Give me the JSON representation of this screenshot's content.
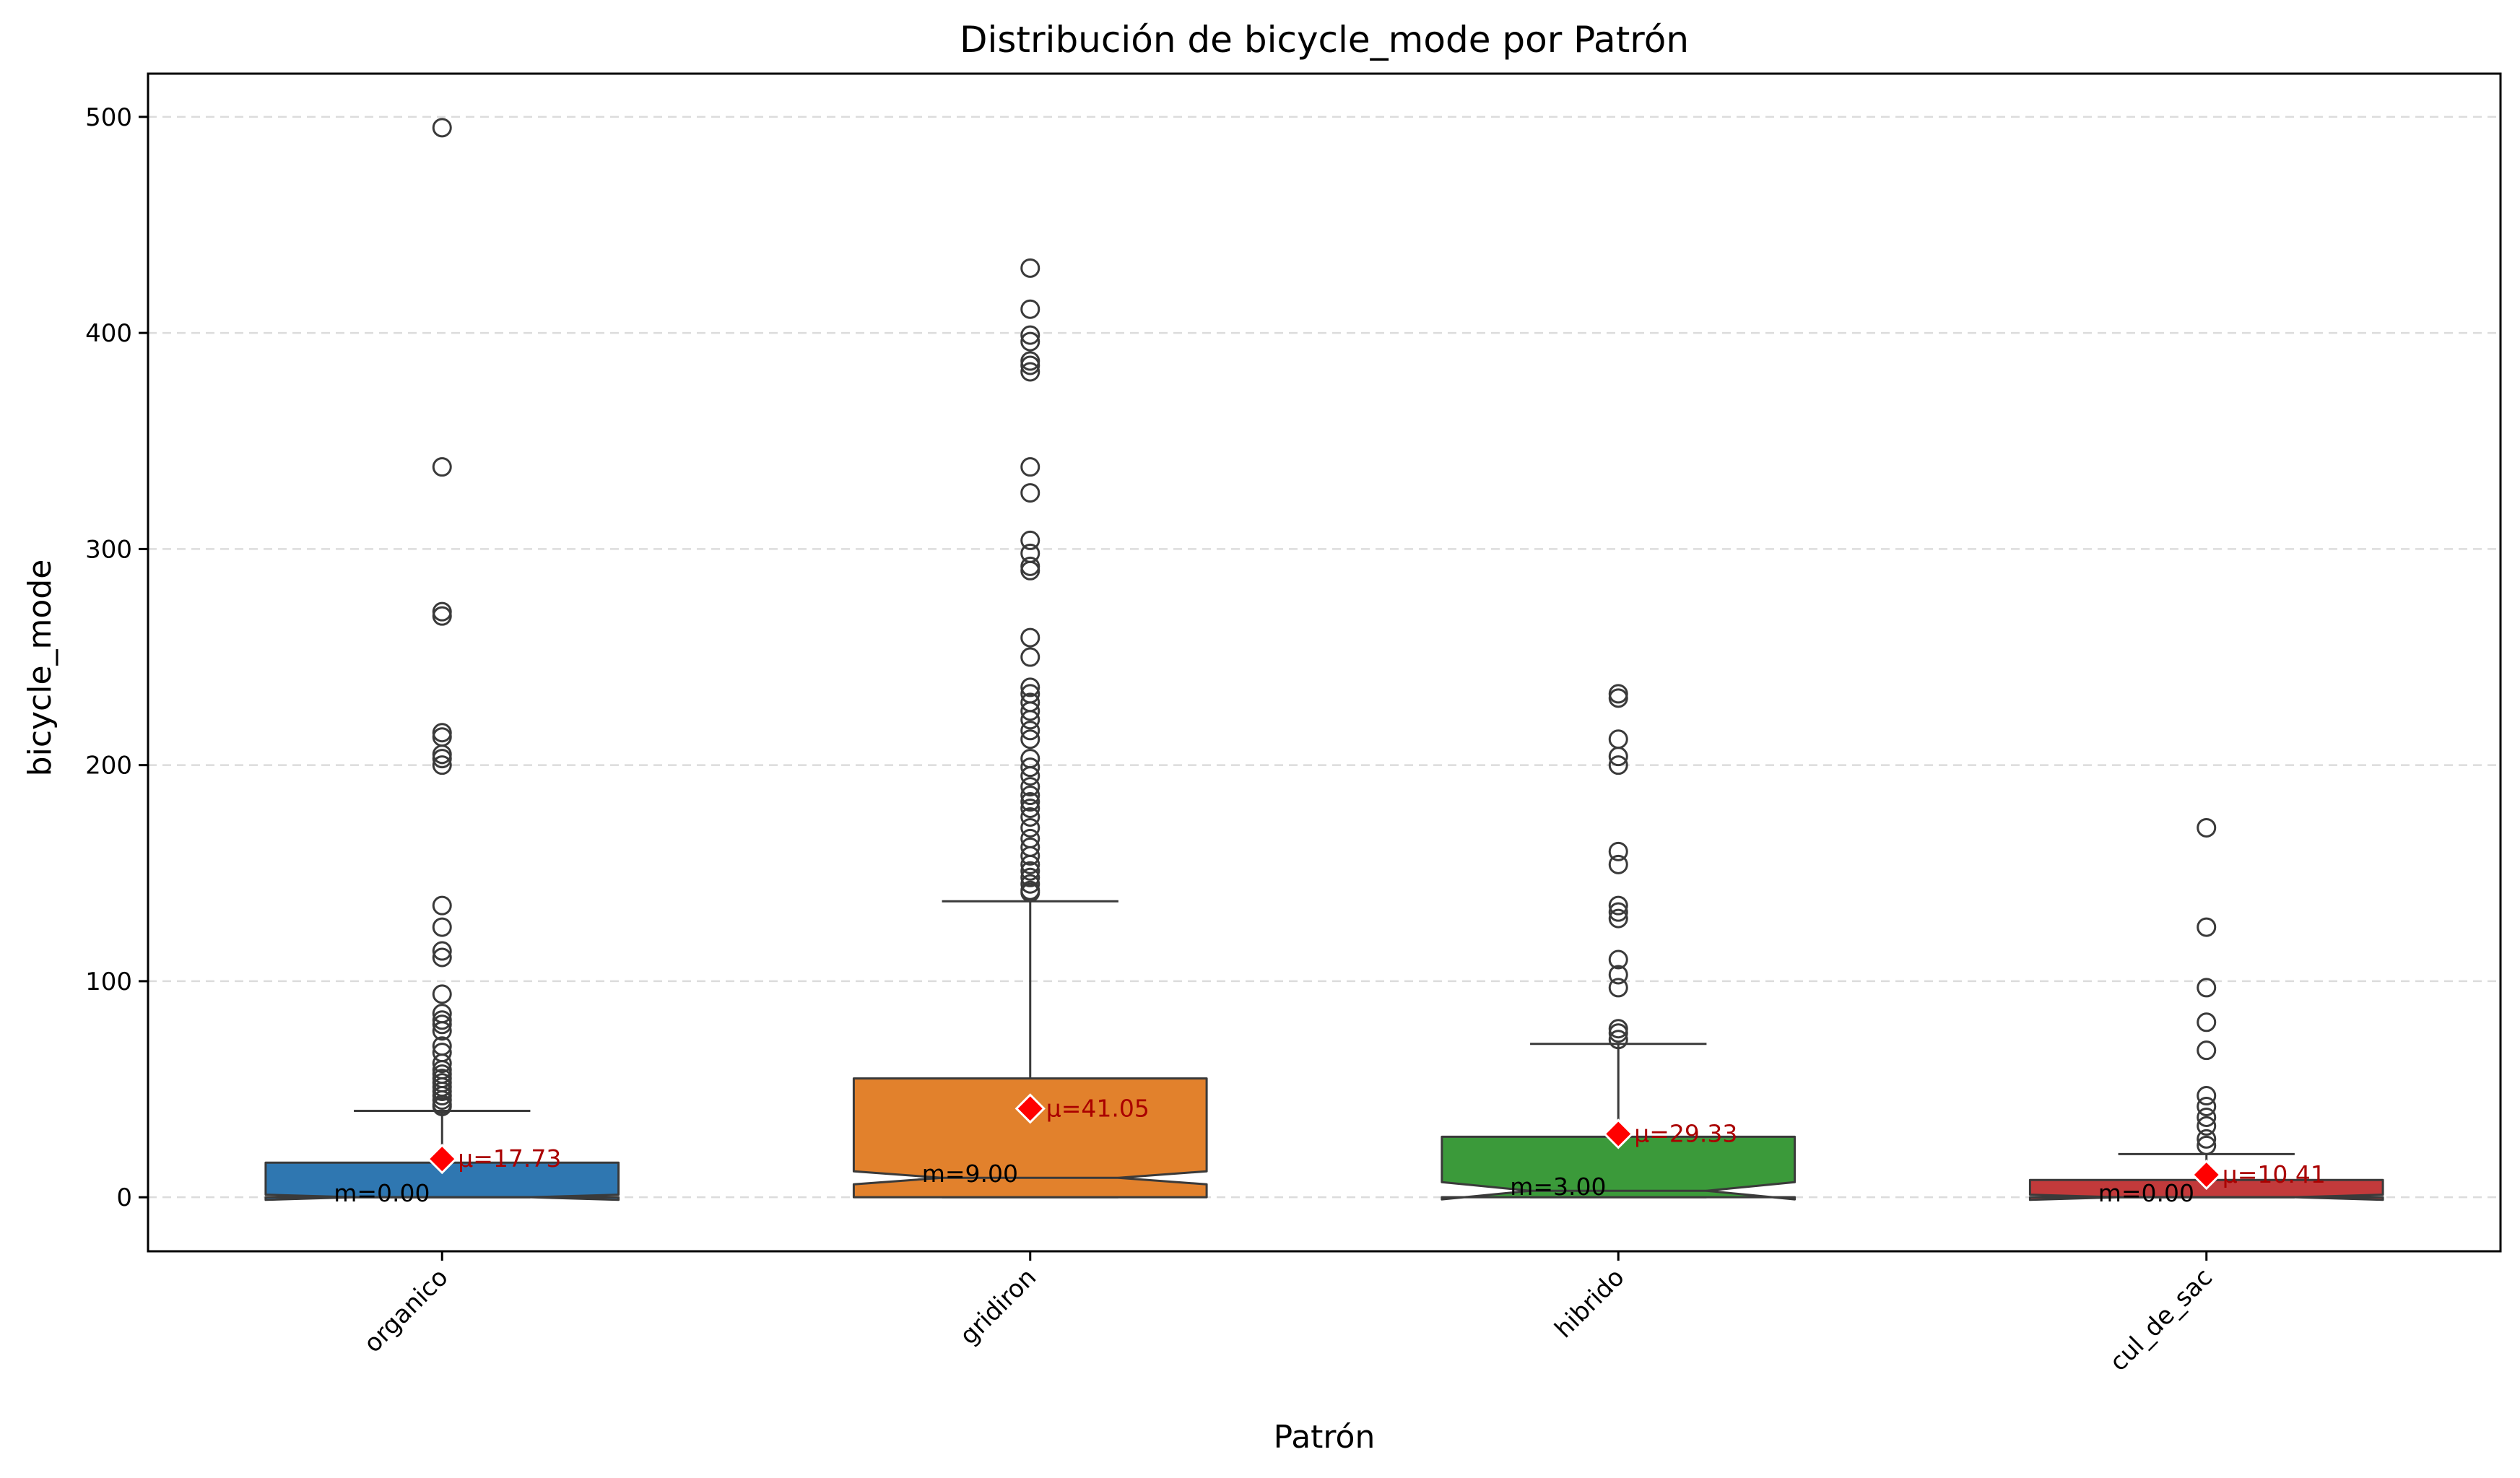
{
  "chart_data": {
    "type": "box",
    "title": "Distribución de bicycle_mode por Patrón",
    "xlabel": "Patrón",
    "ylabel": "bicycle_mode",
    "ylim": [
      -25,
      520
    ],
    "yticks": [
      0,
      100,
      200,
      300,
      400,
      500
    ],
    "grid": "horizontal dashed",
    "notched": true,
    "categories": [
      "organico",
      "gridiron",
      "hibrido",
      "cul_de_sac"
    ],
    "colors": [
      "#2f77b1",
      "#e2812c",
      "#3b9a3a",
      "#c23a3b"
    ],
    "mean_marker_color": "#ff0000",
    "mean_label_color": "#aa0000",
    "boxes": [
      {
        "category": "organico",
        "q1": 0,
        "median": 0,
        "q3": 16,
        "whisker_low": 0,
        "whisker_high": 40,
        "notch_low": -1.2,
        "notch_high": 1.2,
        "mean": 17.73,
        "mean_label": "μ=17.73",
        "median_label": "m=0.00",
        "outliers": [
          495,
          338,
          271,
          269,
          215,
          213,
          205,
          203,
          200,
          135,
          125,
          114,
          111,
          94,
          85,
          82,
          80,
          77,
          70,
          67,
          62,
          59,
          57,
          55,
          53,
          51,
          49,
          47,
          45,
          43,
          42
        ]
      },
      {
        "category": "gridiron",
        "q1": 0,
        "median": 9,
        "q3": 55,
        "whisker_low": 0,
        "whisker_high": 137,
        "notch_low": 6,
        "notch_high": 12,
        "mean": 41.05,
        "mean_label": "μ=41.05",
        "median_label": "m=9.00",
        "outliers": [
          430,
          411,
          399,
          396,
          387,
          385,
          382,
          338,
          326,
          304,
          298,
          292,
          290,
          259,
          250,
          236,
          233,
          229,
          225,
          221,
          216,
          212,
          203,
          199,
          195,
          190,
          186,
          183,
          180,
          176,
          171,
          166,
          162,
          158,
          154,
          151,
          148,
          145,
          142,
          141
        ]
      },
      {
        "category": "hibrido",
        "q1": 0,
        "median": 3,
        "q3": 28,
        "whisker_low": 0,
        "whisker_high": 71,
        "notch_low": -1,
        "notch_high": 7,
        "mean": 29.33,
        "mean_label": "μ=29.33",
        "median_label": "m=3.00",
        "outliers": [
          233,
          231,
          212,
          204,
          200,
          160,
          154,
          135,
          132,
          129,
          110,
          103,
          97,
          78,
          76,
          73
        ]
      },
      {
        "category": "cul_de_sac",
        "q1": 0,
        "median": 0,
        "q3": 8,
        "whisker_low": 0,
        "whisker_high": 20,
        "notch_low": -1.2,
        "notch_high": 1.2,
        "mean": 10.41,
        "mean_label": "μ=10.41",
        "median_label": "m=0.00",
        "outliers": [
          171,
          125,
          97,
          81,
          68,
          47,
          42,
          37,
          33,
          27,
          24
        ]
      }
    ]
  }
}
